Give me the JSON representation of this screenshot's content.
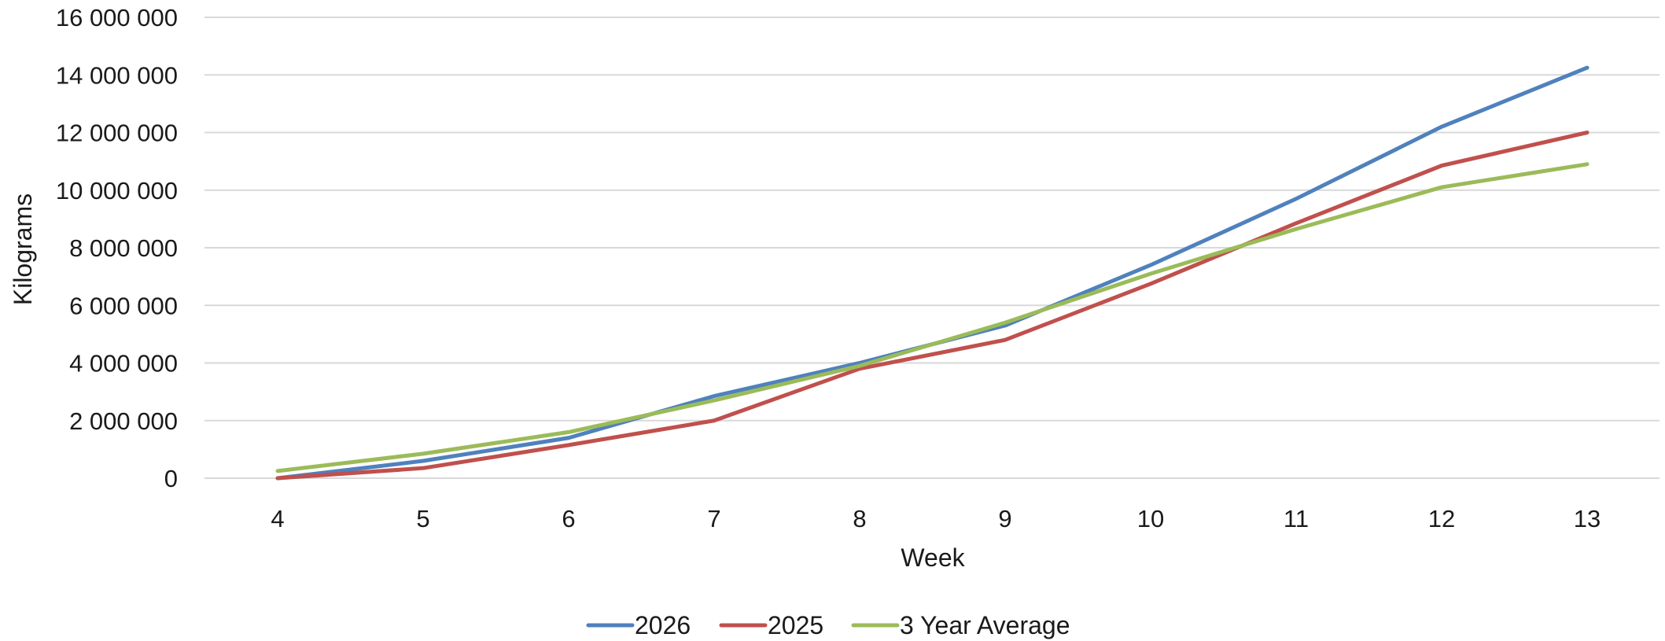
{
  "chart_data": {
    "type": "line",
    "xlabel": "Week",
    "ylabel": "Kilograms",
    "x": [
      4,
      5,
      6,
      7,
      8,
      9,
      10,
      11,
      12,
      13
    ],
    "x_tick_labels": [
      "4",
      "5",
      "6",
      "7",
      "8",
      "9",
      "10",
      "11",
      "12",
      "13"
    ],
    "ylim": [
      0,
      16000000
    ],
    "y_ticks": [
      0,
      2000000,
      4000000,
      6000000,
      8000000,
      10000000,
      12000000,
      14000000,
      16000000
    ],
    "y_tick_labels": [
      "0",
      "2 000 000",
      "4 000 000",
      "6 000 000",
      "8 000 000",
      "10 000 000",
      "12 000 000",
      "14 000 000",
      "16 000 000"
    ],
    "grid": "horizontal",
    "legend_position": "bottom",
    "series": [
      {
        "name": "2026",
        "color": "#4F81BD",
        "values": [
          0,
          600000,
          1400000,
          2850000,
          4000000,
          5300000,
          7400000,
          9700000,
          12200000,
          14250000
        ]
      },
      {
        "name": "2025",
        "color": "#C0504D",
        "values": [
          0,
          350000,
          1150000,
          2000000,
          3800000,
          4800000,
          6750000,
          8850000,
          10850000,
          12000000
        ]
      },
      {
        "name": "3 Year Average",
        "color": "#9BBB59",
        "values": [
          250000,
          850000,
          1600000,
          2700000,
          3900000,
          5400000,
          7100000,
          8650000,
          10100000,
          10900000
        ]
      }
    ]
  }
}
